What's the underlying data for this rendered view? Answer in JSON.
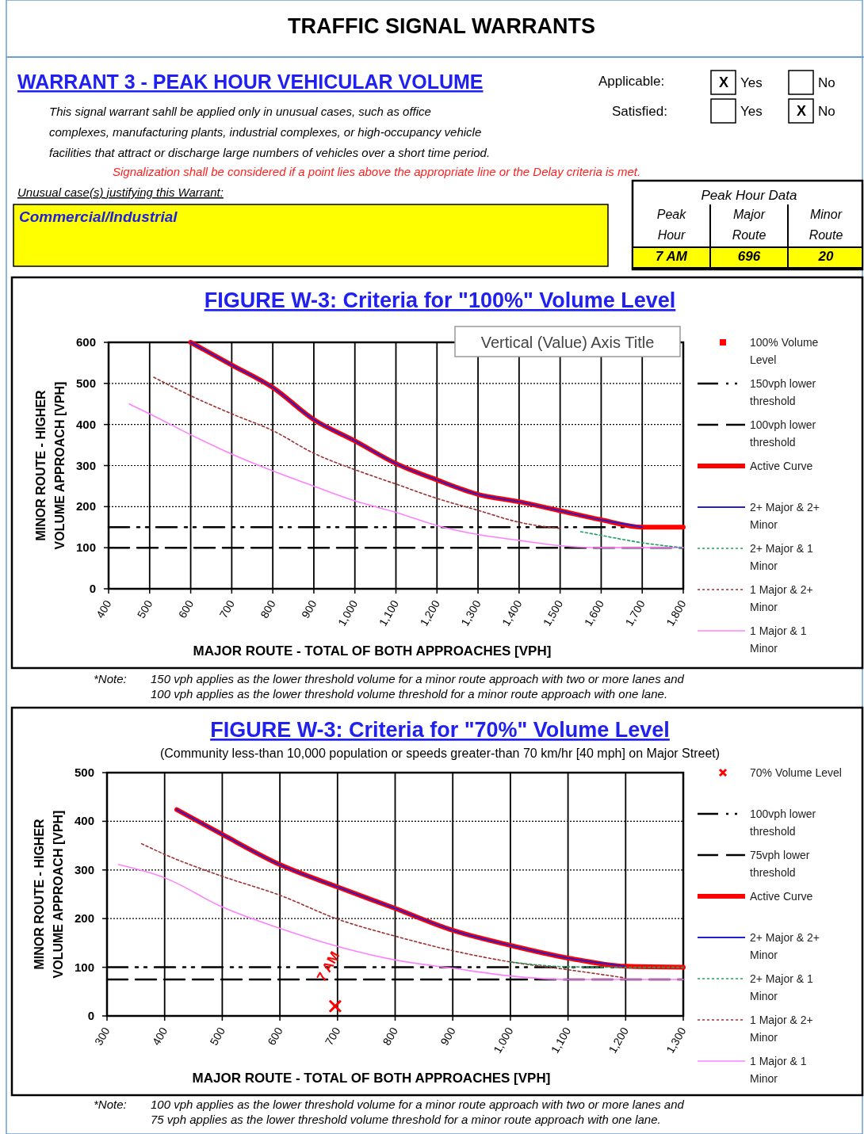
{
  "chart_data": [
    {
      "type": "other",
      "title": "TRAFFIC SIGNAL WARRANTS",
      "subtitle": "WARRANT 3 - PEAK HOUR VEHICULAR VOLUME",
      "annotations": [
        "This signal warrant sahll be applied only in unusual cases, such as office",
        "complexes, manufacturing plants, industrial complexes, or high-occupancy vehicle",
        "facilities that attract or discharge  large numbers of vehicles over a short time period.",
        "Signalization shall be considered if a point lies above the appropriate line or the Delay criteria is met.",
        "Unusual case(s) justifying this Warrant:",
        "Commercial/Industrial",
        "Applicable:",
        "X",
        "Yes",
        "No",
        "Satisfied:",
        "Yes",
        "X",
        "No",
        "Peak Hour Data",
        "Peak",
        "Hour",
        "Major",
        "Route",
        "Minor",
        "Route",
        "7 AM",
        "696",
        "20"
      ]
    },
    {
      "type": "line",
      "title": "FIGURE W-3:  Criteria for \"100%\" Volume Level",
      "xlabel": "MAJOR ROUTE - TOTAL OF BOTH APPROACHES [VPH]",
      "ylabel": "MINOR  ROUTE - HIGHER VOLUME  APPROACH [VPH]",
      "xlim": [
        400,
        1800
      ],
      "ylim": [
        0,
        600
      ],
      "xticks": [
        400,
        500,
        600,
        700,
        800,
        900,
        {
          "value": 1000,
          "label": "1,000"
        },
        {
          "value": 1100,
          "label": "1,100"
        },
        {
          "value": 1200,
          "label": "1,200"
        },
        {
          "value": 1300,
          "label": "1,300"
        },
        {
          "value": 1400,
          "label": "1,400"
        },
        {
          "value": 1500,
          "label": "1,500"
        },
        {
          "value": 1600,
          "label": "1,600"
        },
        {
          "value": 1700,
          "label": "1,700"
        },
        {
          "value": 1800,
          "label": "1,800"
        }
      ],
      "yticks": [
        0,
        100,
        200,
        300,
        400,
        500,
        600
      ],
      "grid": true,
      "legend": "right",
      "annotations": [
        "Vertical (Value) Axis Title",
        "*Note:",
        "150 vph applies as the lower threshold volume for a minor route approach with two or more lanes and",
        "100 vph applies as the lower threshold volume threshold for a minor route approach with one lane."
      ],
      "series": [
        {
          "name": "100% Volume Level",
          "type": "scatter",
          "marker": "square",
          "color": "#ff0000"
        },
        {
          "name": "150vph lower threshold",
          "line_style": "dashed",
          "color": "#000000",
          "x": [
            400,
            1800
          ],
          "values": [
            150,
            150
          ]
        },
        {
          "name": "100vph lower threshold",
          "line_style": "dashed",
          "color": "#000000",
          "x": [
            400,
            1800
          ],
          "values": [
            100,
            100
          ]
        },
        {
          "name": "Active Curve",
          "color": "#ff0000",
          "x": [
            600,
            700,
            800,
            900,
            1000,
            1100,
            1200,
            1300,
            1400,
            1500,
            1600,
            1700,
            1800
          ],
          "values": [
            600,
            545,
            490,
            412,
            360,
            305,
            265,
            230,
            212,
            190,
            168,
            150,
            150
          ]
        },
        {
          "name": "2+ Major & 2+ Minor",
          "color": "#2020d0",
          "x": [
            600,
            700,
            800,
            900,
            1000,
            1100,
            1200,
            1300,
            1400,
            1500,
            1600,
            1700
          ],
          "values": [
            600,
            545,
            490,
            412,
            360,
            305,
            265,
            230,
            212,
            190,
            168,
            150
          ]
        },
        {
          "name": "2+ Major & 1 Minor",
          "line_style": "dotted",
          "color": "#20a060",
          "x": [
            1550,
            1600,
            1700,
            1800
          ],
          "values": [
            139,
            130,
            112,
            100
          ]
        },
        {
          "name": "1 Major & 2+ Minor",
          "line_style": "dotted",
          "color": "#a03030",
          "x": [
            510,
            600,
            700,
            800,
            900,
            1000,
            1100,
            1200,
            1300,
            1400,
            1500
          ],
          "values": [
            515,
            470,
            426,
            385,
            330,
            290,
            255,
            220,
            191,
            162,
            147
          ]
        },
        {
          "name": "1 Major & 1 Minor",
          "color": "#ff80ff",
          "x": [
            450,
            500,
            600,
            700,
            800,
            900,
            1000,
            1100,
            1200,
            1300,
            1400,
            1500,
            1600,
            1800
          ],
          "values": [
            450,
            426,
            375,
            328,
            287,
            250,
            214,
            186,
            154,
            132,
            118,
            105,
            100,
            100
          ]
        }
      ]
    },
    {
      "type": "line",
      "title": "FIGURE W-3:  Criteria for \"70%\" Volume Level",
      "subtitle": "(Community less-than 10,000 population or speeds greater-than 70 km/hr [40 mph] on Major Street)",
      "xlabel": "MAJOR ROUTE - TOTAL OF BOTH APPROACHES [VPH]",
      "ylabel": "MINOR  ROUTE - HIGHER VOLUME  APPROACH [VPH]",
      "xlim": [
        300,
        1300
      ],
      "ylim": [
        0,
        500
      ],
      "xticks": [
        300,
        400,
        500,
        600,
        700,
        800,
        900,
        {
          "value": 1000,
          "label": "1,000"
        },
        {
          "value": 1100,
          "label": "1,100"
        },
        {
          "value": 1200,
          "label": "1,200"
        },
        {
          "value": 1300,
          "label": "1,300"
        }
      ],
      "yticks": [
        0,
        100,
        200,
        300,
        400,
        500
      ],
      "grid": true,
      "legend": "right",
      "annotations": [
        {
          "text": "7 AM",
          "x": 696,
          "y": 20
        },
        "*Note:",
        "100 vph applies as the lower threshold volume for a minor route approach with two or more lanes and",
        "75 vph applies as the lower threshold volume threshold for a minor route approach with one lane."
      ],
      "series": [
        {
          "name": "70% Volume Level",
          "type": "scatter",
          "marker": "cross",
          "color": "#ff0000",
          "x": [
            696
          ],
          "values": [
            20
          ]
        },
        {
          "name": "100vph lower threshold",
          "line_style": "dashed",
          "color": "#000000",
          "x": [
            300,
            1300
          ],
          "values": [
            100,
            100
          ]
        },
        {
          "name": "75vph lower threshold",
          "line_style": "dashed",
          "color": "#000000",
          "x": [
            300,
            1300
          ],
          "values": [
            75,
            75
          ]
        },
        {
          "name": "Active Curve",
          "color": "#ff0000",
          "x": [
            421,
            500,
            600,
            700,
            800,
            900,
            1000,
            1100,
            1200,
            1300
          ],
          "values": [
            424,
            373,
            311,
            265,
            221,
            176,
            145,
            119,
            102,
            100
          ]
        },
        {
          "name": "2+ Major & 2+ Minor",
          "color": "#2020d0",
          "x": [
            421,
            500,
            600,
            700,
            800,
            900,
            1000,
            1100,
            1200
          ],
          "values": [
            424,
            373,
            311,
            265,
            221,
            176,
            145,
            119,
            102
          ]
        },
        {
          "name": "2+ Major & 1 Minor",
          "line_style": "dotted",
          "color": "#20a060",
          "x": [
            1000,
            1100,
            1200,
            1300
          ],
          "values": [
            111,
            101,
            100,
            100
          ]
        },
        {
          "name": "1 Major & 2+ Minor",
          "line_style": "dotted",
          "color": "#a03030",
          "x": [
            360,
            400,
            500,
            600,
            700,
            800,
            900,
            1000,
            1100,
            1200
          ],
          "values": [
            354,
            332,
            287,
            248,
            199,
            164,
            134,
            111,
            95,
            78
          ]
        },
        {
          "name": "1 Major & 1 Minor",
          "color": "#ff80ff",
          "x": [
            320,
            400,
            500,
            600,
            700,
            800,
            900,
            1000,
            1100,
            1300
          ],
          "values": [
            311,
            284,
            224,
            180,
            143,
            115,
            98,
            82,
            75,
            75
          ]
        }
      ]
    }
  ]
}
